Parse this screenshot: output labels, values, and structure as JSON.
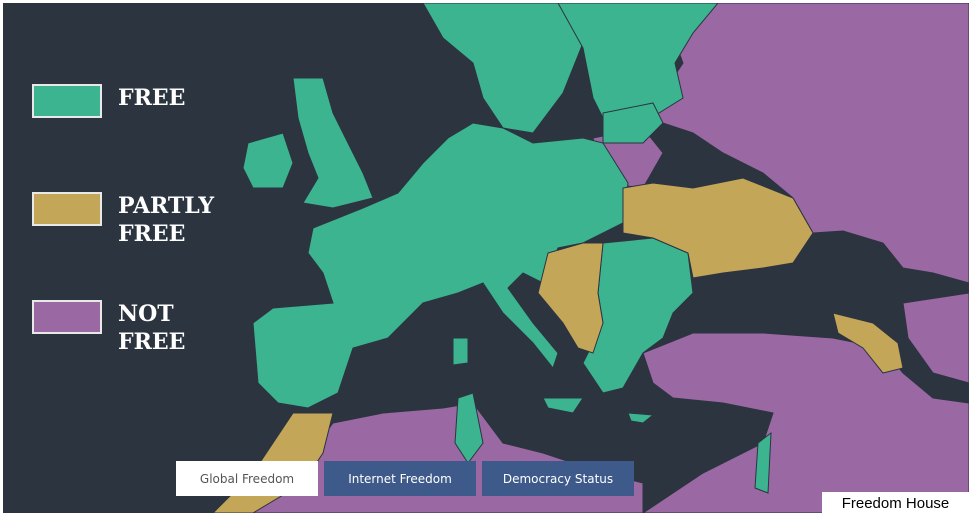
{
  "legend": [
    {
      "label": "FREE"
    },
    {
      "label": "PARTLY FREE"
    },
    {
      "label": "NOT FREE"
    }
  ],
  "tabs": [
    "Global Freedom",
    "Internet Freedom",
    "Democracy Status"
  ],
  "credit": "Freedom House"
}
